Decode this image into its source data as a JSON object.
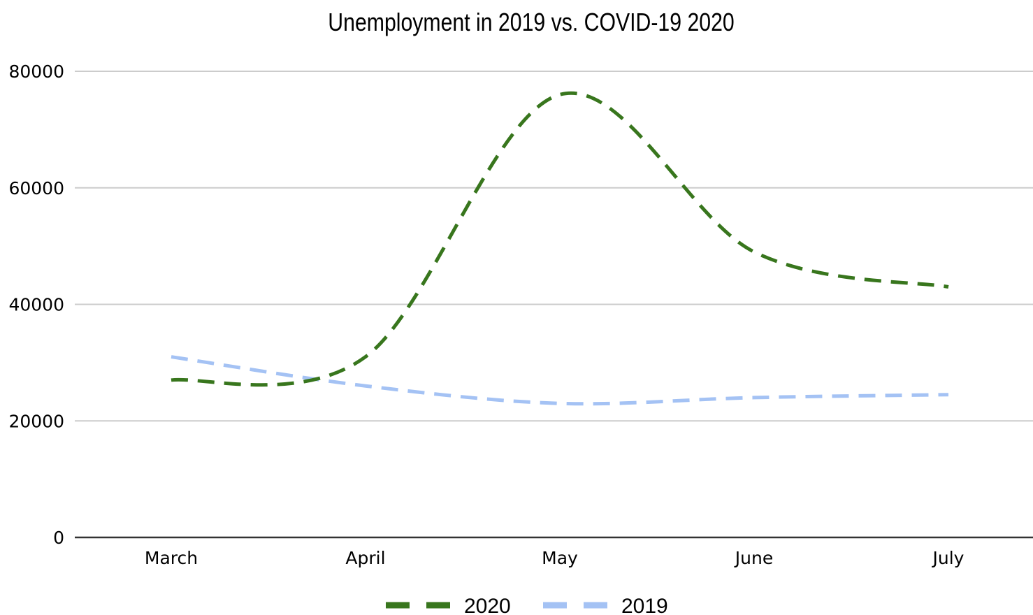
{
  "chart_data": {
    "type": "line",
    "title": "Unemployment in 2019 vs. COVID-19 2020",
    "xlabel": "",
    "ylabel": "",
    "categories": [
      "March",
      "April",
      "May",
      "June",
      "July"
    ],
    "ylim": [
      0,
      80000
    ],
    "yticks": [
      "0",
      "20000",
      "40000",
      "60000",
      "80000"
    ],
    "grid": true,
    "smooth": true,
    "legend_position": "bottom",
    "series": [
      {
        "name": "2020",
        "values": [
          27000,
          31000,
          76000,
          49000,
          43000
        ],
        "color": "#38761d",
        "dashed": true
      },
      {
        "name": "2019",
        "values": [
          31000,
          26000,
          23000,
          24000,
          24500
        ],
        "color": "#a4c2f4",
        "dashed": true
      }
    ]
  }
}
